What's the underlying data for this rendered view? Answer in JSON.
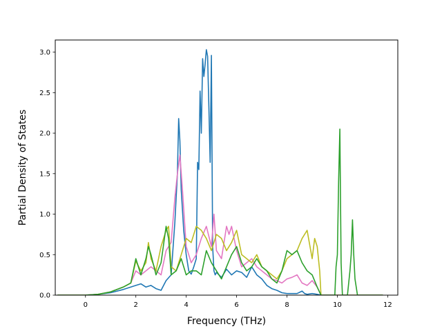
{
  "chart_data": {
    "type": "line",
    "xlabel": "Frequency (THz)",
    "ylabel": "Partial Density of States",
    "xlim": [
      -1.2,
      12.4
    ],
    "ylim": [
      0,
      3.15
    ],
    "x_ticks": [
      0,
      2,
      4,
      6,
      8,
      10,
      12
    ],
    "x_tick_labels": [
      "0",
      "2",
      "4",
      "6",
      "8",
      "10",
      "12"
    ],
    "y_ticks": [
      0.0,
      0.5,
      1.0,
      1.5,
      2.0,
      2.5,
      3.0
    ],
    "y_tick_labels": [
      "0.0",
      "0.5",
      "1.0",
      "1.5",
      "2.0",
      "2.5",
      "3.0"
    ],
    "grid": false,
    "series": [
      {
        "color": "#1f77b4",
        "x": [
          -1.1,
          0,
          0.5,
          1.0,
          1.5,
          1.8,
          2.0,
          2.2,
          2.4,
          2.6,
          2.8,
          3.0,
          3.2,
          3.4,
          3.55,
          3.65,
          3.7,
          3.75,
          3.8,
          3.9,
          4.0,
          4.1,
          4.2,
          4.3,
          4.4,
          4.45,
          4.5,
          4.55,
          4.6,
          4.65,
          4.7,
          4.75,
          4.8,
          4.85,
          4.9,
          4.95,
          5.0,
          5.05,
          5.1,
          5.15,
          5.2,
          5.4,
          5.6,
          5.8,
          6.0,
          6.2,
          6.4,
          6.6,
          6.8,
          7.0,
          7.2,
          7.4,
          7.6,
          7.8,
          8.0,
          8.4,
          8.6,
          8.7,
          8.8,
          9.0,
          9.2,
          9.35,
          9.5,
          11.8
        ],
        "y": [
          0,
          0,
          0.01,
          0.03,
          0.07,
          0.1,
          0.12,
          0.14,
          0.1,
          0.12,
          0.08,
          0.06,
          0.18,
          0.25,
          0.9,
          1.5,
          2.18,
          1.9,
          1.3,
          0.8,
          0.5,
          0.3,
          0.26,
          0.35,
          0.45,
          1.64,
          1.55,
          2.52,
          2.0,
          2.92,
          2.7,
          2.85,
          3.03,
          2.95,
          2.3,
          1.64,
          2.96,
          0.6,
          0.3,
          0.25,
          0.28,
          0.22,
          0.32,
          0.25,
          0.3,
          0.28,
          0.22,
          0.35,
          0.25,
          0.2,
          0.12,
          0.08,
          0.06,
          0.03,
          0.02,
          0.02,
          0.05,
          0.02,
          0.01,
          0.02,
          0.01,
          0,
          0,
          0
        ]
      },
      {
        "color": "#e377c2",
        "x": [
          -1.1,
          0,
          0.5,
          1.0,
          1.5,
          1.8,
          2.0,
          2.2,
          2.4,
          2.6,
          2.8,
          3.0,
          3.2,
          3.4,
          3.55,
          3.65,
          3.75,
          3.85,
          4.0,
          4.2,
          4.4,
          4.6,
          4.8,
          5.0,
          5.1,
          5.2,
          5.4,
          5.6,
          5.7,
          5.8,
          6.0,
          6.2,
          6.4,
          6.6,
          6.8,
          7.0,
          7.2,
          7.4,
          7.6,
          7.8,
          8.0,
          8.2,
          8.4,
          8.6,
          8.8,
          9.0,
          9.2,
          9.35,
          9.5,
          11.8
        ],
        "y": [
          0,
          0,
          0.01,
          0.04,
          0.1,
          0.15,
          0.3,
          0.25,
          0.3,
          0.35,
          0.3,
          0.25,
          0.55,
          0.65,
          1.2,
          1.5,
          1.73,
          1.3,
          0.6,
          0.4,
          0.5,
          0.7,
          0.85,
          0.6,
          1.0,
          0.55,
          0.45,
          0.85,
          0.75,
          0.85,
          0.55,
          0.35,
          0.4,
          0.45,
          0.35,
          0.3,
          0.25,
          0.2,
          0.18,
          0.15,
          0.2,
          0.22,
          0.25,
          0.15,
          0.12,
          0.18,
          0.1,
          0,
          0,
          0
        ]
      },
      {
        "color": "#bcbd22",
        "x": [
          -1.1,
          0,
          0.5,
          1.0,
          1.5,
          1.8,
          2.0,
          2.2,
          2.4,
          2.5,
          2.6,
          2.8,
          3.0,
          3.2,
          3.3,
          3.4,
          3.6,
          3.8,
          4.0,
          4.2,
          4.4,
          4.6,
          4.8,
          5.0,
          5.2,
          5.4,
          5.6,
          5.8,
          6.0,
          6.2,
          6.4,
          6.6,
          6.8,
          7.0,
          7.2,
          7.4,
          7.6,
          7.8,
          8.0,
          8.2,
          8.4,
          8.6,
          8.8,
          9.0,
          9.1,
          9.2,
          9.3,
          9.35,
          9.5,
          11.8
        ],
        "y": [
          0,
          0,
          0.01,
          0.04,
          0.1,
          0.15,
          0.42,
          0.3,
          0.4,
          0.65,
          0.45,
          0.3,
          0.6,
          0.8,
          0.85,
          0.35,
          0.3,
          0.5,
          0.7,
          0.65,
          0.85,
          0.8,
          0.7,
          0.55,
          0.75,
          0.7,
          0.55,
          0.65,
          0.8,
          0.5,
          0.45,
          0.4,
          0.5,
          0.35,
          0.3,
          0.25,
          0.2,
          0.3,
          0.45,
          0.5,
          0.55,
          0.7,
          0.8,
          0.45,
          0.7,
          0.6,
          0.3,
          0,
          0,
          0
        ]
      },
      {
        "color": "#2ca02c",
        "x": [
          -1.1,
          0,
          0.5,
          1.0,
          1.5,
          1.8,
          2.0,
          2.2,
          2.4,
          2.5,
          2.6,
          2.8,
          3.0,
          3.2,
          3.3,
          3.4,
          3.6,
          3.8,
          4.0,
          4.2,
          4.4,
          4.6,
          4.8,
          5.0,
          5.2,
          5.4,
          5.6,
          5.8,
          6.0,
          6.2,
          6.4,
          6.6,
          6.8,
          7.0,
          7.2,
          7.4,
          7.6,
          7.8,
          8.0,
          8.2,
          8.4,
          8.6,
          8.8,
          9.0,
          9.2,
          9.35,
          9.5,
          9.9,
          9.95,
          10.0,
          10.05,
          10.1,
          10.15,
          10.2,
          10.25,
          10.3,
          10.35,
          10.4,
          10.5,
          10.55,
          10.6,
          10.65,
          10.7,
          10.75,
          10.8,
          11.8
        ],
        "y": [
          0,
          0,
          0.01,
          0.04,
          0.1,
          0.15,
          0.45,
          0.25,
          0.45,
          0.6,
          0.5,
          0.25,
          0.4,
          0.85,
          0.7,
          0.25,
          0.3,
          0.45,
          0.25,
          0.3,
          0.3,
          0.25,
          0.55,
          0.4,
          0.3,
          0.2,
          0.35,
          0.5,
          0.6,
          0.4,
          0.3,
          0.35,
          0.45,
          0.35,
          0.3,
          0.2,
          0.15,
          0.3,
          0.55,
          0.5,
          0.55,
          0.4,
          0.3,
          0.25,
          0.1,
          0,
          0,
          0,
          0.35,
          0.5,
          1.4,
          2.05,
          0.4,
          0,
          0,
          0,
          0,
          0,
          0.3,
          0.5,
          0.93,
          0.5,
          0.2,
          0.1,
          0,
          0
        ]
      }
    ]
  }
}
